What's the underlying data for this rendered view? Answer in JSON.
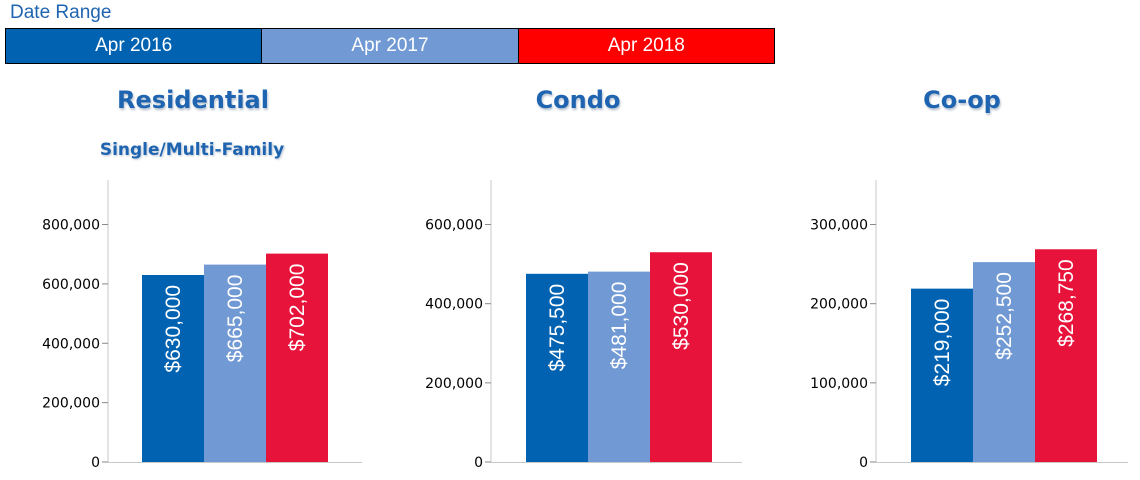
{
  "legend": {
    "title": "Date Range",
    "items": [
      {
        "label": "Apr 2016",
        "color": "#0062b1"
      },
      {
        "label": "Apr 2017",
        "color": "#7199d4"
      },
      {
        "label": "Apr 2018",
        "color": "#ff0000"
      }
    ]
  },
  "series_colors": [
    "#0062b1",
    "#7199d4",
    "#e8133a"
  ],
  "chart_data": [
    {
      "type": "bar",
      "title": "Residential",
      "subtitle": "Single/Multi-Family",
      "categories": [
        "Apr 2016",
        "Apr 2017",
        "Apr 2018"
      ],
      "values": [
        630000,
        665000,
        702000
      ],
      "data_labels": [
        "$630,000",
        "$665,000",
        "$702,000"
      ],
      "yticks": [
        0,
        200000,
        400000,
        600000,
        800000
      ],
      "ytick_labels": [
        "0",
        "200,000",
        "400,000",
        "600,000",
        "800,000"
      ],
      "ylim": [
        0,
        950000
      ]
    },
    {
      "type": "bar",
      "title": "Condo",
      "subtitle": "",
      "categories": [
        "Apr 2016",
        "Apr 2017",
        "Apr 2018"
      ],
      "values": [
        475500,
        481000,
        530000
      ],
      "data_labels": [
        "$475,500",
        "$481,000",
        "$530,000"
      ],
      "yticks": [
        0,
        200000,
        400000,
        600000
      ],
      "ytick_labels": [
        "0",
        "200,000",
        "400,000",
        "600,000"
      ],
      "ylim": [
        0,
        712500
      ]
    },
    {
      "type": "bar",
      "title": "Co-op",
      "subtitle": "",
      "categories": [
        "Apr 2016",
        "Apr 2017",
        "Apr 2018"
      ],
      "values": [
        219000,
        252500,
        268750
      ],
      "data_labels": [
        "$219,000",
        "$252,500",
        "$268,750"
      ],
      "yticks": [
        0,
        100000,
        200000,
        300000
      ],
      "ytick_labels": [
        "0",
        "100,000",
        "200,000",
        "300,000"
      ],
      "ylim": [
        0,
        356250
      ]
    }
  ]
}
